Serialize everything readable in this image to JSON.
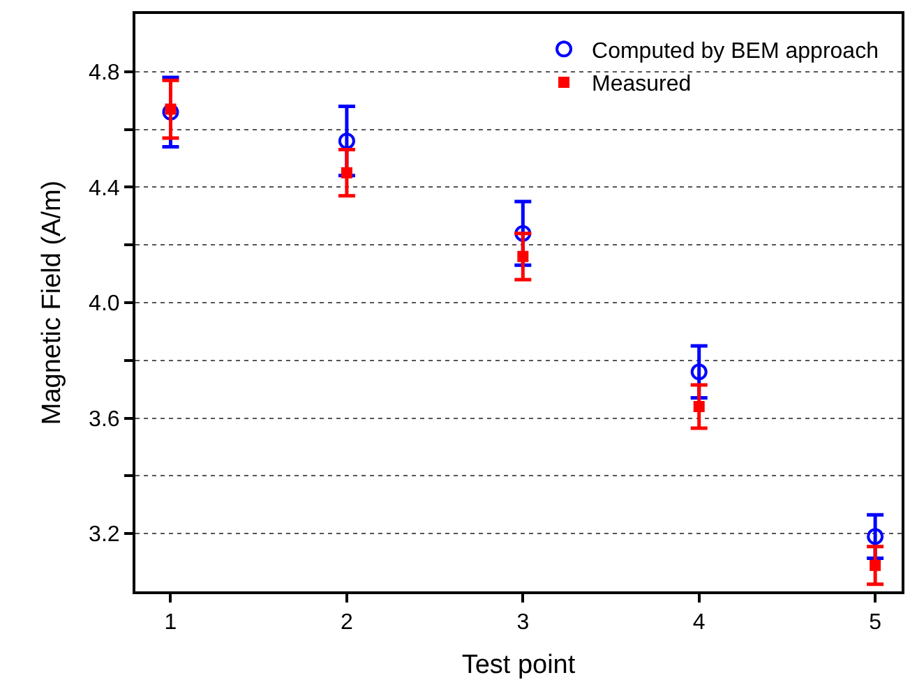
{
  "chart_data": {
    "type": "scatter",
    "xlabel": "Test point",
    "ylabel": "Magnetic Field (A/m)",
    "x": [
      1,
      2,
      3,
      4,
      5
    ],
    "series": [
      {
        "name": "Computed by BEM approach",
        "color": "#0000ff",
        "marker": "circle",
        "values": [
          4.66,
          4.56,
          4.24,
          3.76,
          3.19
        ],
        "errors": [
          0.12,
          0.12,
          0.11,
          0.09,
          0.075
        ]
      },
      {
        "name": "Measured",
        "color": "#ff0000",
        "marker": "square",
        "values": [
          4.67,
          4.45,
          4.16,
          3.64,
          3.09
        ],
        "errors": [
          0.1,
          0.08,
          0.08,
          0.075,
          0.065
        ]
      }
    ],
    "xlim": [
      0.8,
      5.15
    ],
    "xticks": [
      1,
      2,
      3,
      4,
      5
    ],
    "ylim": [
      3.0,
      5.0
    ],
    "yticks": [
      {
        "value": 3.2,
        "label": "3.2"
      },
      {
        "value": 3.4,
        "label": null
      },
      {
        "value": 3.6,
        "label": "3.6"
      },
      {
        "value": 3.8,
        "label": null
      },
      {
        "value": 4.0,
        "label": "4.0"
      },
      {
        "value": 4.2,
        "label": null
      },
      {
        "value": 4.4,
        "label": "4.4"
      },
      {
        "value": 4.6,
        "label": null
      },
      {
        "value": 4.8,
        "label": "4.8"
      }
    ],
    "grid": "y",
    "legend": "top right"
  }
}
